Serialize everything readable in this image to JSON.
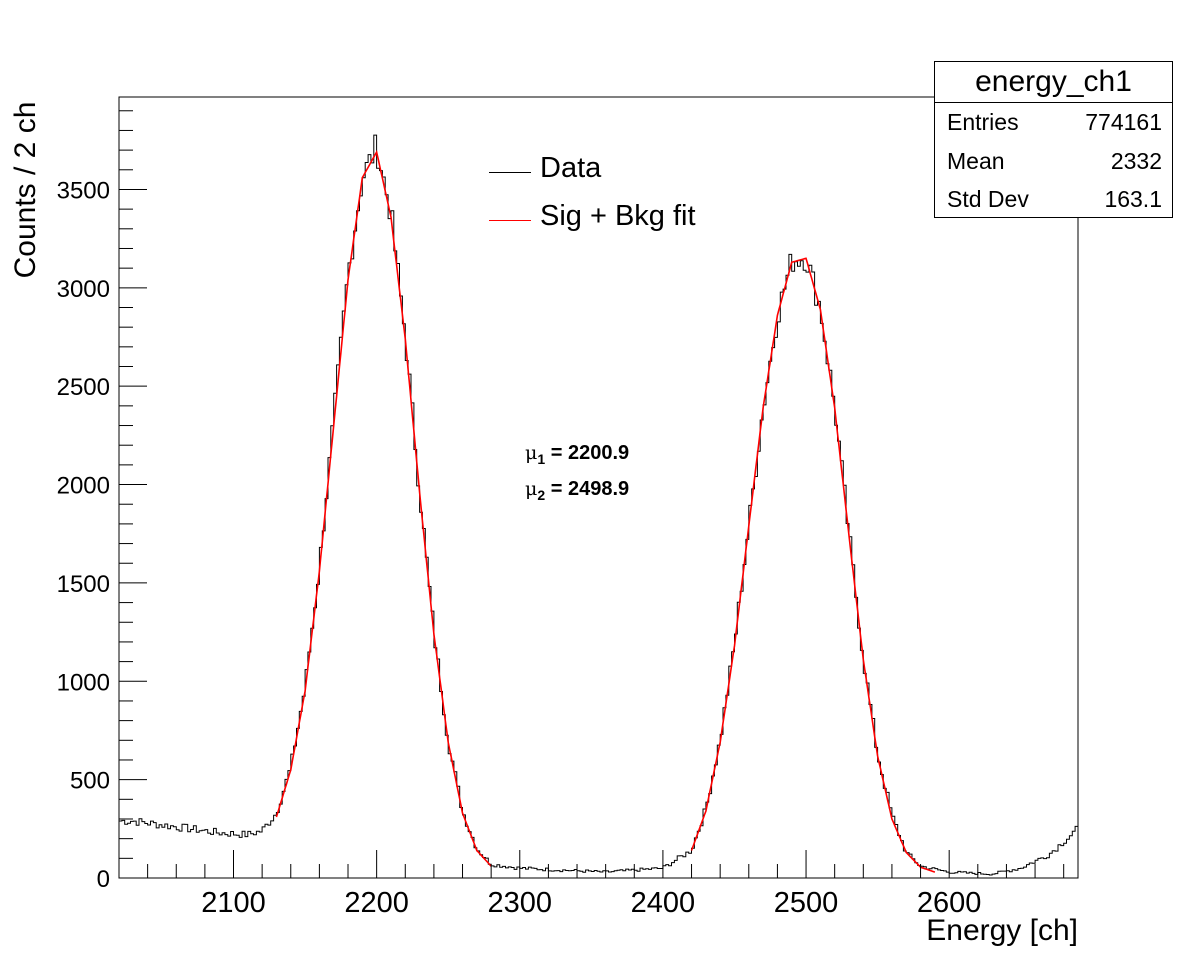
{
  "chart_data": {
    "type": "histogram",
    "xlabel": "Energy [ch]",
    "ylabel": "Counts / 2 ch",
    "xlim": [
      2020,
      2690
    ],
    "ylim": [
      0,
      3970
    ],
    "bin_width": 2,
    "x_ticks": [
      2100,
      2200,
      2300,
      2400,
      2500,
      2600
    ],
    "y_ticks": [
      0,
      500,
      1000,
      1500,
      2000,
      2500,
      3000,
      3500
    ],
    "grid": false,
    "legend": {
      "placement": "top-center",
      "entries": [
        {
          "label": "Data",
          "color": "#000000"
        },
        {
          "label": "Sig + Bkg fit",
          "color": "#ff0000"
        }
      ]
    },
    "stats_box": {
      "title": "energy_ch1",
      "rows": [
        {
          "key": "Entries",
          "value": "774161"
        },
        {
          "key": "Mean",
          "value": "2332"
        },
        {
          "key": "Std Dev",
          "value": "163.1"
        }
      ]
    },
    "annotations": [
      {
        "symbol": "μ",
        "sub": "1",
        "text": " = 2200.9"
      },
      {
        "symbol": "μ",
        "sub": "2",
        "text": " = 2498.9"
      }
    ],
    "series": [
      {
        "name": "Data",
        "style": "histogram-step",
        "color": "#000000",
        "x": [
          2030,
          2060,
          2090,
          2110,
          2120,
          2130,
          2140,
          2150,
          2160,
          2170,
          2180,
          2190,
          2200,
          2210,
          2220,
          2230,
          2240,
          2250,
          2260,
          2270,
          2280,
          2300,
          2330,
          2360,
          2400,
          2420,
          2430,
          2440,
          2450,
          2460,
          2470,
          2480,
          2490,
          2500,
          2510,
          2520,
          2530,
          2540,
          2550,
          2560,
          2570,
          2580,
          2600,
          2630,
          2650,
          2670,
          2690
        ],
        "y": [
          290,
          260,
          230,
          220,
          240,
          330,
          560,
          970,
          1580,
          2330,
          3070,
          3560,
          3720,
          3380,
          2760,
          1970,
          1250,
          700,
          340,
          150,
          70,
          50,
          40,
          30,
          50,
          140,
          350,
          700,
          1190,
          1790,
          2390,
          2860,
          3140,
          3160,
          2900,
          2400,
          1750,
          1120,
          630,
          320,
          130,
          60,
          30,
          20,
          50,
          120,
          250
        ]
      },
      {
        "name": "Sig + Bkg fit",
        "style": "curve",
        "color": "#ff0000",
        "x": [
          2130,
          2140,
          2150,
          2160,
          2170,
          2180,
          2190,
          2200,
          2210,
          2220,
          2230,
          2240,
          2250,
          2260,
          2270,
          2280,
          2420,
          2430,
          2440,
          2450,
          2460,
          2470,
          2480,
          2490,
          2500,
          2510,
          2520,
          2530,
          2540,
          2550,
          2560,
          2570,
          2580,
          2590
        ],
        "y": [
          310,
          550,
          950,
          1560,
          2300,
          3040,
          3560,
          3690,
          3360,
          2740,
          1960,
          1240,
          690,
          330,
          140,
          60,
          140,
          340,
          690,
          1180,
          1790,
          2390,
          2860,
          3130,
          3150,
          2890,
          2390,
          1740,
          1110,
          620,
          300,
          130,
          55,
          30
        ]
      }
    ]
  }
}
